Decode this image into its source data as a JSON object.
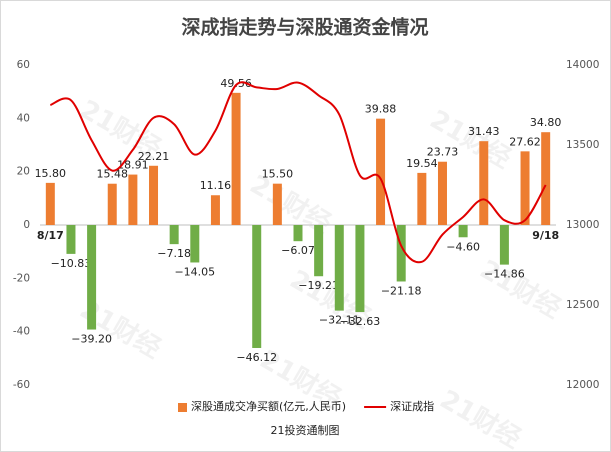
{
  "chart_data": {
    "type": "bar_line",
    "title": "深成指走势与深股通资金情况",
    "footer": "21投资通制图",
    "watermark": "21财经",
    "categories": [
      "8/17",
      null,
      null,
      null,
      null,
      null,
      null,
      null,
      null,
      null,
      null,
      null,
      null,
      null,
      null,
      null,
      null,
      null,
      null,
      null,
      null,
      null,
      null,
      null,
      "9/18"
    ],
    "series": [
      {
        "name": "深股通成交净买额(亿元,人民币)",
        "type": "bar",
        "color": "#ed7d31",
        "negative_color": "#70ad47",
        "values": [
          15.8,
          -10.83,
          -39.2,
          15.48,
          18.91,
          22.21,
          -7.18,
          -14.05,
          11.16,
          49.56,
          -46.12,
          15.5,
          -6.07,
          -19.21,
          -32.11,
          -32.63,
          39.88,
          -21.18,
          19.54,
          23.73,
          -4.6,
          31.43,
          -14.86,
          27.62,
          34.8
        ],
        "value_labels": [
          "15.80",
          "−10.83",
          "−39.20",
          "15.48",
          "18.91",
          "22.21",
          "−7.18",
          "−14.05",
          "11.16",
          "49.56",
          "−46.12",
          "15.50",
          "−6.07",
          "−19.21",
          "−32.11",
          "−32.63",
          "39.88",
          "−21.18",
          "19.54",
          "23.73",
          "−4.60",
          "31.43",
          "−14.86",
          "27.62",
          "34.80"
        ]
      },
      {
        "name": "深证成指",
        "type": "line",
        "axis": "y2",
        "color": "#e00000",
        "values": [
          13750,
          13780,
          13530,
          13340,
          13470,
          13670,
          13630,
          13440,
          13590,
          13875,
          13860,
          13850,
          13890,
          13810,
          13690,
          13310,
          13290,
          12870,
          12770,
          12940,
          13050,
          13160,
          13030,
          13030,
          13250
        ]
      }
    ],
    "ylim": [
      -60,
      60
    ],
    "yticks": [
      -60,
      -40,
      -20,
      0,
      20,
      40,
      60
    ],
    "y2lim": [
      12000,
      14000
    ],
    "y2ticks": [
      12000,
      12500,
      13000,
      13500,
      14000
    ],
    "legend": "bottom"
  }
}
